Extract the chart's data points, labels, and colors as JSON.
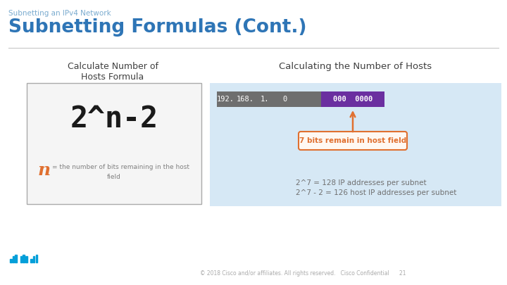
{
  "bg_color": "#ffffff",
  "subtitle": "Subnetting an IPv4 Network",
  "title": "Subnetting Formulas (Cont.)",
  "subtitle_color": "#7aabcf",
  "title_color": "#2e75b6",
  "left_label": "Calculate Number of\nHosts Formula",
  "left_label_color": "#404040",
  "formula_color": "#1a1a1a",
  "n_color": "#e07030",
  "n_def_color": "#808080",
  "right_label": "Calculating the Number of Hosts",
  "right_label_color": "#404040",
  "ip_parts": [
    "192.",
    "168.",
    "1.",
    "0"
  ],
  "ip_host_text": "000  0000",
  "ip_host_color": "#6b2fa0",
  "ip_grey_color": "#6e6e6e",
  "arrow_label": "7 bits remain in host field",
  "arrow_color": "#e07030",
  "calc_line1": "2^7 = 128 IP addresses per subnet",
  "calc_line2": "2^7 - 2 = 126 host IP addresses per subnet",
  "calc_color": "#707070",
  "right_bg_color": "#d6e8f5",
  "footer_text": "© 2018 Cisco and/or affiliates. All rights reserved.   Cisco Confidential      21",
  "footer_color": "#aaaaaa",
  "cisco_color": "#049fd9",
  "divider_color": "#c8c8c8"
}
